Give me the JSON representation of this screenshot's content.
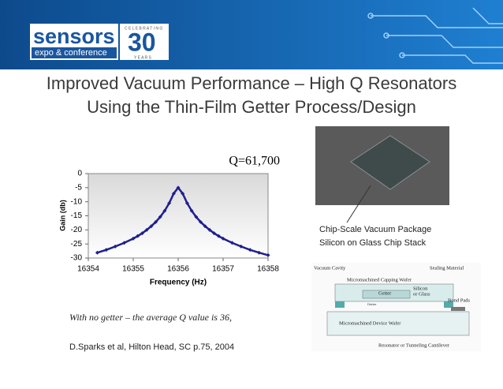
{
  "header": {
    "logo": "sensors",
    "logo_sub": "expo & conference",
    "anniversary": "30",
    "celebrating": "C E L E B R A T I N G",
    "years": "Y E A R S"
  },
  "title": [
    "Improved Vacuum Performance – High Q Resonators",
    "Using the Thin-Film Getter Process/Design"
  ],
  "chart_data": {
    "type": "line",
    "annotation": "Q=61,700",
    "xlabel": "Frequency (Hz)",
    "ylabel": "Gain (db)",
    "x": [
      16354.2,
      16354.4,
      16354.6,
      16354.8,
      16355.0,
      16355.1,
      16355.2,
      16355.3,
      16355.4,
      16355.5,
      16355.6,
      16355.7,
      16355.8,
      16355.9,
      16356.0,
      16356.1,
      16356.2,
      16356.3,
      16356.4,
      16356.5,
      16356.6,
      16356.7,
      16356.8,
      16356.9,
      16357.0,
      16357.2,
      16357.4,
      16357.6,
      16357.8,
      16358.0
    ],
    "series": [
      {
        "name": "Gain",
        "color": "#1f1f8f",
        "values": [
          -28.1,
          -27.1,
          -25.9,
          -24.6,
          -23.1,
          -22.2,
          -21.2,
          -20.0,
          -18.7,
          -17.2,
          -15.4,
          -13.2,
          -10.5,
          -7.1,
          -5.0,
          -7.1,
          -10.5,
          -13.2,
          -15.4,
          -17.2,
          -18.7,
          -20.0,
          -21.2,
          -22.2,
          -23.1,
          -24.6,
          -25.9,
          -27.1,
          -28.1,
          -29.0
        ]
      }
    ],
    "xlim": [
      16354,
      16358
    ],
    "xticks": [
      16354,
      16355,
      16356,
      16357,
      16358
    ],
    "ylim": [
      -30,
      0
    ],
    "yticks": [
      0,
      -5,
      -10,
      -15,
      -20,
      -25,
      -30
    ]
  },
  "caption": "With no getter – the average Q value is 36,",
  "reference": "D.Sparks et al, Hilton Head, SC  p.75, 2004",
  "photo_label": [
    "Chip-Scale Vacuum Package",
    "Silicon on Glass Chip Stack"
  ],
  "diagram": {
    "vacuum_cavity": "Vacuum Cavity",
    "sealing": "Sealing Material",
    "capping": "Micromachined Capping Wafer",
    "getter": "Getter",
    "getter_small": "Getter",
    "silicon": "Silicon",
    "or_glass": "or Glass",
    "bond_pads": "Bond Pads",
    "device": "Micromachined Device Wafer",
    "resonator": "Resonator or Tunneling Cantilever"
  }
}
